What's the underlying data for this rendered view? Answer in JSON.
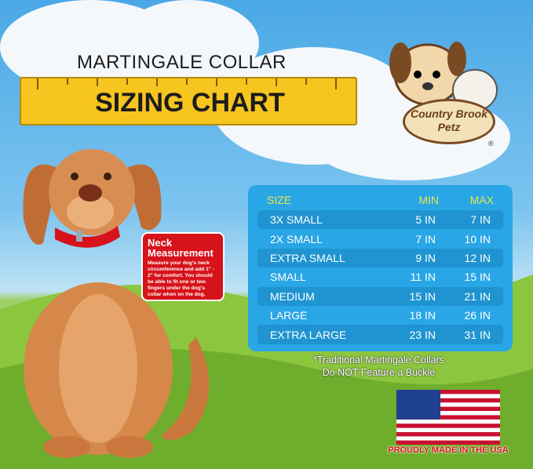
{
  "header": {
    "title_top": "MARTINGALE COLLAR",
    "title_main": "SIZING CHART"
  },
  "brand": {
    "logo_text": "Country Brook Petz",
    "registered": "®"
  },
  "neck_box": {
    "title": "Neck Measurement",
    "text": "Measure your dog's neck circumference and add 1\" - 2\" for comfort. You should be able to fit one or two fingers under the dog's collar when on the dog."
  },
  "table": {
    "headers": [
      "SIZE",
      "MIN",
      "MAX"
    ],
    "rows": [
      [
        "3X SMALL",
        "5 IN",
        "7 IN"
      ],
      [
        "2X SMALL",
        "7 IN",
        "10 IN"
      ],
      [
        "EXTRA SMALL",
        "9 IN",
        "12 IN"
      ],
      [
        "SMALL",
        "11 IN",
        "15 IN"
      ],
      [
        "MEDIUM",
        "15 IN",
        "21 IN"
      ],
      [
        "LARGE",
        "18 IN",
        "26 IN"
      ],
      [
        "EXTRA LARGE",
        "23 IN",
        "31 IN"
      ]
    ]
  },
  "note": {
    "line1": "*Traditional Martingale Collars",
    "line2": "Do NOT Feature a Buckle"
  },
  "footer": {
    "made_in": "PROUDLY MADE IN THE USA"
  },
  "colors": {
    "table_bg": "#29a6e6",
    "header_text": "#e8e84a",
    "ruler": "#f7c520",
    "neck_box": "#d6121a"
  }
}
